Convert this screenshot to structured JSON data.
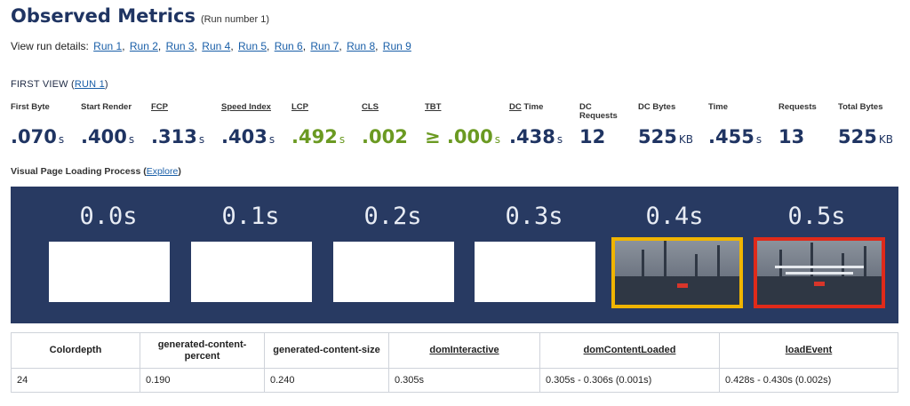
{
  "header": {
    "title": "Observed Metrics",
    "subtitle": "(Run number 1)"
  },
  "runs": {
    "label": "View run details:",
    "links": [
      "Run 1",
      "Run 2",
      "Run 3",
      "Run 4",
      "Run 5",
      "Run 6",
      "Run 7",
      "Run 8",
      "Run 9"
    ]
  },
  "first_view": {
    "label": "FIRST VIEW (",
    "run_link": "RUN 1",
    "close": ")"
  },
  "metrics": [
    {
      "label": "First Byte",
      "value": ".070",
      "unit": "s"
    },
    {
      "label": "Start Render",
      "value": ".400",
      "unit": "s"
    },
    {
      "label": "FCP",
      "value": ".313",
      "unit": "s"
    },
    {
      "label": "Speed Index",
      "value": ".403",
      "unit": "s"
    },
    {
      "label": "LCP",
      "value": ".492",
      "unit": "s"
    },
    {
      "label": "CLS",
      "value": ".002",
      "unit": ""
    },
    {
      "label": "TBT",
      "value": "≥ .000",
      "unit": "s"
    },
    {
      "label": "DC Time",
      "value": ".438",
      "unit": "s"
    },
    {
      "label": "DC Requests",
      "value": "12",
      "unit": ""
    },
    {
      "label": "DC Bytes",
      "value": "525",
      "unit": "KB"
    },
    {
      "label": "Time",
      "value": ".455",
      "unit": "s"
    },
    {
      "label": "Requests",
      "value": "13",
      "unit": ""
    },
    {
      "label": "Total Bytes",
      "value": "525",
      "unit": "KB"
    }
  ],
  "visual": {
    "label": "Visual Page Loading Process (",
    "link": "Explore",
    "close": ")"
  },
  "filmstrip": [
    "0.0s",
    "0.1s",
    "0.2s",
    "0.3s",
    "0.4s",
    "0.5s"
  ],
  "table": {
    "headers": [
      "Colordepth",
      "generated-content-percent",
      "generated-content-size",
      "domInteractive",
      "domContentLoaded",
      "loadEvent"
    ],
    "row": [
      "24",
      "0.190",
      "0.240",
      "0.305s",
      "0.305s - 0.306s (0.001s)",
      "0.428s - 0.430s (0.002s)"
    ]
  },
  "colors": {
    "accent": "#1f3462",
    "good": "#6b9a22",
    "link": "#1a5fa8",
    "filmstrip_bg": "#283a62",
    "highlight_yellow": "#f0b400",
    "highlight_red": "#e02a1a"
  }
}
